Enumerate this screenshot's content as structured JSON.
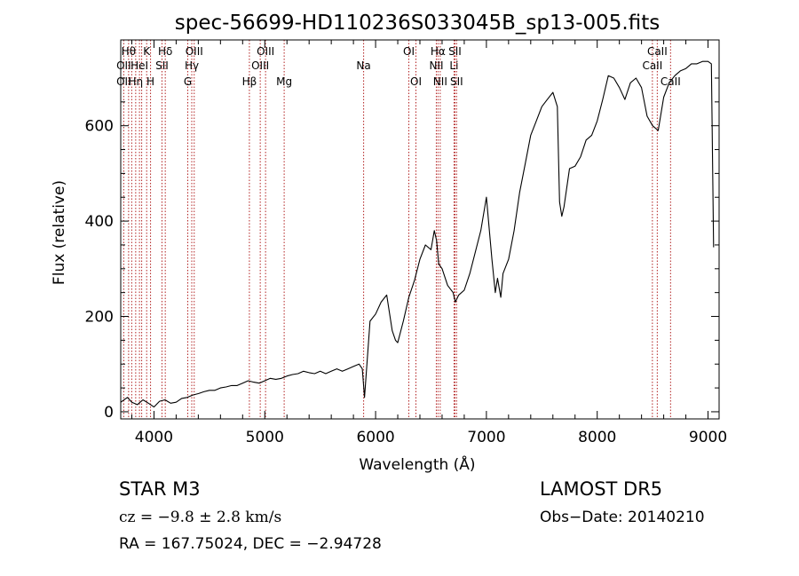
{
  "chart_data": {
    "type": "line",
    "title": "spec-56699-HD110236S033045B_sp13-005.fits",
    "xlabel": "Wavelength (Å)",
    "ylabel": "Flux (relative)",
    "xlim": [
      3700,
      9100
    ],
    "ylim": [
      -15,
      780
    ],
    "xticks": [
      4000,
      5000,
      6000,
      7000,
      8000,
      9000
    ],
    "yticks": [
      0,
      200,
      400,
      600
    ],
    "xtick_labels": [
      "4000",
      "5000",
      "6000",
      "7000",
      "8000",
      "9000"
    ],
    "ytick_labels": [
      "0",
      "200",
      "400",
      "600"
    ],
    "grid": false,
    "series": [
      {
        "color": "#000000",
        "x": [
          3700,
          3760,
          3800,
          3850,
          3900,
          3950,
          4000,
          4050,
          4100,
          4150,
          4200,
          4250,
          4300,
          4350,
          4400,
          4450,
          4500,
          4550,
          4600,
          4650,
          4700,
          4750,
          4800,
          4850,
          4900,
          4950,
          5000,
          5050,
          5100,
          5150,
          5200,
          5250,
          5300,
          5350,
          5400,
          5450,
          5500,
          5550,
          5600,
          5650,
          5700,
          5750,
          5800,
          5850,
          5880,
          5900,
          5950,
          6000,
          6050,
          6100,
          6150,
          6180,
          6200,
          6250,
          6300,
          6350,
          6400,
          6450,
          6500,
          6530,
          6550,
          6570,
          6600,
          6650,
          6700,
          6720,
          6750,
          6800,
          6850,
          6900,
          6950,
          7000,
          7050,
          7080,
          7100,
          7130,
          7150,
          7200,
          7250,
          7300,
          7350,
          7400,
          7450,
          7500,
          7550,
          7600,
          7640,
          7660,
          7680,
          7700,
          7750,
          7800,
          7850,
          7900,
          7950,
          8000,
          8050,
          8100,
          8150,
          8200,
          8250,
          8300,
          8350,
          8400,
          8450,
          8500,
          8550,
          8600,
          8650,
          8700,
          8750,
          8800,
          8850,
          8900,
          8950,
          9000,
          9030,
          9050
        ],
        "y": [
          20,
          30,
          20,
          15,
          25,
          18,
          10,
          22,
          25,
          18,
          20,
          28,
          30,
          35,
          38,
          42,
          45,
          45,
          50,
          52,
          55,
          55,
          60,
          65,
          62,
          60,
          65,
          70,
          68,
          70,
          75,
          78,
          80,
          85,
          82,
          80,
          85,
          80,
          85,
          90,
          85,
          90,
          95,
          100,
          90,
          30,
          190,
          205,
          230,
          245,
          170,
          150,
          145,
          190,
          240,
          275,
          320,
          350,
          340,
          380,
          360,
          310,
          300,
          265,
          250,
          230,
          245,
          255,
          290,
          335,
          380,
          450,
          320,
          250,
          280,
          240,
          290,
          320,
          380,
          460,
          520,
          580,
          610,
          640,
          655,
          670,
          640,
          440,
          410,
          430,
          510,
          515,
          535,
          570,
          580,
          610,
          655,
          705,
          700,
          680,
          655,
          690,
          700,
          680,
          620,
          600,
          590,
          660,
          690,
          705,
          715,
          720,
          730,
          730,
          735,
          735,
          730,
          345
        ]
      }
    ],
    "lines": [
      {
        "wavelength": 3727,
        "labels": [
          {
            "text": "OII",
            "row": 2
          },
          {
            "text": "OII",
            "row": 3
          }
        ]
      },
      {
        "wavelength": 3771,
        "labels": [
          {
            "text": "Hθ",
            "row": 1
          }
        ]
      },
      {
        "wavelength": 3799,
        "labels": []
      },
      {
        "wavelength": 3835,
        "labels": [
          {
            "text": "Hη",
            "row": 3
          }
        ]
      },
      {
        "wavelength": 3869,
        "labels": [
          {
            "text": "HeI",
            "row": 2
          }
        ]
      },
      {
        "wavelength": 3889,
        "labels": []
      },
      {
        "wavelength": 3934,
        "labels": [
          {
            "text": "K",
            "row": 1
          }
        ]
      },
      {
        "wavelength": 3969,
        "labels": [
          {
            "text": "H",
            "row": 3
          }
        ]
      },
      {
        "wavelength": 4072,
        "labels": [
          {
            "text": "SII",
            "row": 2
          }
        ]
      },
      {
        "wavelength": 4102,
        "labels": [
          {
            "text": "Hδ",
            "row": 1
          }
        ]
      },
      {
        "wavelength": 4305,
        "labels": [
          {
            "text": "G",
            "row": 3
          }
        ]
      },
      {
        "wavelength": 4341,
        "labels": [
          {
            "text": "Hγ",
            "row": 2
          }
        ]
      },
      {
        "wavelength": 4363,
        "labels": [
          {
            "text": "OIII",
            "row": 1
          }
        ]
      },
      {
        "wavelength": 4861,
        "labels": [
          {
            "text": "Hβ",
            "row": 3
          }
        ]
      },
      {
        "wavelength": 4959,
        "labels": [
          {
            "text": "OIII",
            "row": 2
          }
        ]
      },
      {
        "wavelength": 5007,
        "labels": [
          {
            "text": "OIII",
            "row": 1
          }
        ]
      },
      {
        "wavelength": 5175,
        "labels": [
          {
            "text": "Mg",
            "row": 3
          }
        ]
      },
      {
        "wavelength": 5892,
        "labels": [
          {
            "text": "Na",
            "row": 2
          }
        ]
      },
      {
        "wavelength": 6300,
        "labels": [
          {
            "text": "OI",
            "row": 1
          }
        ]
      },
      {
        "wavelength": 6364,
        "labels": [
          {
            "text": "OI",
            "row": 3
          }
        ]
      },
      {
        "wavelength": 6548,
        "labels": [
          {
            "text": "NII",
            "row": 2
          }
        ]
      },
      {
        "wavelength": 6563,
        "labels": [
          {
            "text": "Hα",
            "row": 1
          }
        ]
      },
      {
        "wavelength": 6583,
        "labels": [
          {
            "text": "NII",
            "row": 3
          }
        ]
      },
      {
        "wavelength": 6708,
        "labels": [
          {
            "text": "Li",
            "row": 2
          }
        ]
      },
      {
        "wavelength": 6716,
        "labels": [
          {
            "text": "SII",
            "row": 1
          }
        ]
      },
      {
        "wavelength": 6731,
        "labels": [
          {
            "text": "SII",
            "row": 3
          }
        ]
      },
      {
        "wavelength": 8498,
        "labels": [
          {
            "text": "CaII",
            "row": 2
          }
        ]
      },
      {
        "wavelength": 8542,
        "labels": [
          {
            "text": "CaII",
            "row": 1
          }
        ]
      },
      {
        "wavelength": 8662,
        "labels": [
          {
            "text": "CaII",
            "row": 3
          }
        ]
      }
    ],
    "line_color": "#b22222"
  },
  "info": {
    "star_class": "STAR     M3",
    "survey": "LAMOST  DR5",
    "cz": "cz = −9.8 ± 2.8 km/s",
    "obs_date": "Obs−Date: 20140210",
    "radec": "RA = 167.75024, DEC =  −2.94728"
  }
}
